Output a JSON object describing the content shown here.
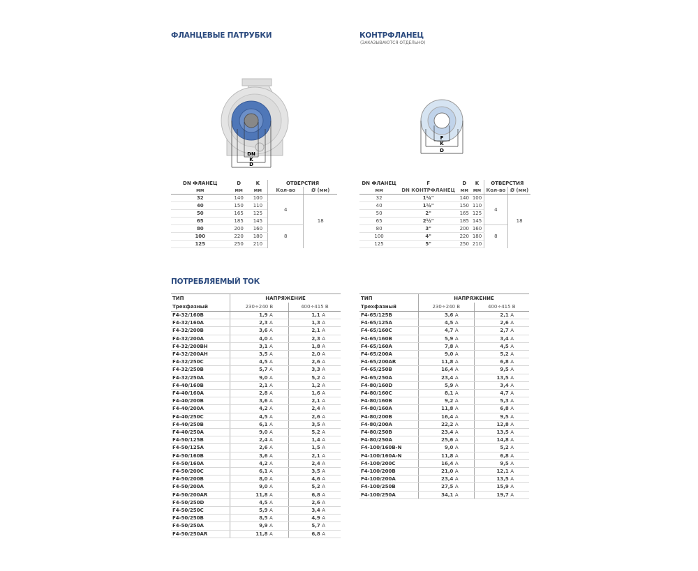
{
  "flanges": {
    "title": "ФЛАНЦЕВЫЕ ПАТРУБКИ",
    "diagram_labels": {
      "dn": "DN",
      "k": "K",
      "d": "D"
    },
    "headers": [
      "DN ФЛАНЕЦ",
      "D",
      "K",
      "ОТВЕРСТИЯ"
    ],
    "subheaders": [
      "мм",
      "мм",
      "мм",
      "Кол-во",
      "Ø (мм)"
    ],
    "rows": [
      {
        "dn": "32",
        "d": "140",
        "k": "100"
      },
      {
        "dn": "40",
        "d": "150",
        "k": "110"
      },
      {
        "dn": "50",
        "d": "165",
        "k": "125"
      },
      {
        "dn": "65",
        "d": "185",
        "k": "145"
      },
      {
        "dn": "80",
        "d": "200",
        "k": "160"
      },
      {
        "dn": "100",
        "d": "220",
        "k": "180"
      },
      {
        "dn": "125",
        "d": "250",
        "k": "210"
      }
    ],
    "holes_count_a": "4",
    "holes_count_b": "8",
    "holes_dia": "18"
  },
  "counterflange": {
    "title": "КОНТРФЛАНЕЦ",
    "subtitle": "(ЗАКАЗЫВАЮТСЯ ОТДЕЛЬНО)",
    "diagram_labels": {
      "f": "F",
      "k": "K",
      "d": "D"
    },
    "headers": [
      "DN ФЛАНЕЦ",
      "F",
      "D",
      "K",
      "ОТВЕРСТИЯ"
    ],
    "subheaders": [
      "мм",
      "DN КОНТРФЛАНЕЦ",
      "мм",
      "мм",
      "Кол-во",
      "Ø (мм)"
    ],
    "rows": [
      {
        "dn": "32",
        "f": "1¼\"",
        "d": "140",
        "k": "100"
      },
      {
        "dn": "40",
        "f": "1½\"",
        "d": "150",
        "k": "110"
      },
      {
        "dn": "50",
        "f": "2\"",
        "d": "165",
        "k": "125"
      },
      {
        "dn": "65",
        "f": "2½\"",
        "d": "185",
        "k": "145"
      },
      {
        "dn": "80",
        "f": "3\"",
        "d": "200",
        "k": "160"
      },
      {
        "dn": "100",
        "f": "4\"",
        "d": "220",
        "k": "180"
      },
      {
        "dn": "125",
        "f": "5\"",
        "d": "250",
        "k": "210"
      }
    ],
    "holes_count_a": "4",
    "holes_count_b": "8",
    "holes_dia": "18"
  },
  "current": {
    "title": "ПОТРЕБЛЯЕМЫЙ ТОК",
    "col_type": "ТИП",
    "col_voltage": "НАПРЯЖЕНИЕ",
    "col_phase": "Трехфазный",
    "v1": "230÷240 В",
    "v2": "400÷415 В",
    "unit": "A",
    "left": [
      [
        "F4-32/160B",
        "1,9",
        "1,1"
      ],
      [
        "F4-32/160A",
        "2,3",
        "1,3"
      ],
      [
        "F4-32/200B",
        "3,6",
        "2,1"
      ],
      [
        "F4-32/200A",
        "4,0",
        "2,3"
      ],
      [
        "F4-32/200BH",
        "3,1",
        "1,8"
      ],
      [
        "F4-32/200AH",
        "3,5",
        "2,0"
      ],
      [
        "F4-32/250C",
        "4,5",
        "2,6"
      ],
      [
        "F4-32/250B",
        "5,7",
        "3,3"
      ],
      [
        "F4-32/250A",
        "9,0",
        "5,2"
      ],
      [
        "F4-40/160B",
        "2,1",
        "1,2"
      ],
      [
        "F4-40/160A",
        "2,8",
        "1,6"
      ],
      [
        "F4-40/200B",
        "3,6",
        "2,1"
      ],
      [
        "F4-40/200A",
        "4,2",
        "2,4"
      ],
      [
        "F4-40/250C",
        "4,5",
        "2,6"
      ],
      [
        "F4-40/250B",
        "6,1",
        "3,5"
      ],
      [
        "F4-40/250A",
        "9,0",
        "5,2"
      ],
      [
        "F4-50/125B",
        "2,4",
        "1,4"
      ],
      [
        "F4-50/125A",
        "2,6",
        "1,5"
      ],
      [
        "F4-50/160B",
        "3,6",
        "2,1"
      ],
      [
        "F4-50/160A",
        "4,2",
        "2,4"
      ],
      [
        "F4-50/200C",
        "6,1",
        "3,5"
      ],
      [
        "F4-50/200B",
        "8,0",
        "4,6"
      ],
      [
        "F4-50/200A",
        "9,0",
        "5,2"
      ],
      [
        "F4-50/200AR",
        "11,8",
        "6,8"
      ],
      [
        "F4-50/250D",
        "4,5",
        "2,6"
      ],
      [
        "F4-50/250C",
        "5,9",
        "3,4"
      ],
      [
        "F4-50/250B",
        "8,5",
        "4,9"
      ],
      [
        "F4-50/250A",
        "9,9",
        "5,7"
      ],
      [
        "F4-50/250AR",
        "11,8",
        "6,8"
      ]
    ],
    "right": [
      [
        "F4-65/125B",
        "3,6",
        "2,1"
      ],
      [
        "F4-65/125A",
        "4,5",
        "2,6"
      ],
      [
        "F4-65/160C",
        "4,7",
        "2,7"
      ],
      [
        "F4-65/160B",
        "5,9",
        "3,4"
      ],
      [
        "F4-65/160A",
        "7,8",
        "4,5"
      ],
      [
        "F4-65/200A",
        "9,0",
        "5,2"
      ],
      [
        "F4-65/200AR",
        "11,8",
        "6,8"
      ],
      [
        "F4-65/250B",
        "16,4",
        "9,5"
      ],
      [
        "F4-65/250A",
        "23,4",
        "13,5"
      ],
      [
        "F4-80/160D",
        "5,9",
        "3,4"
      ],
      [
        "F4-80/160C",
        "8,1",
        "4,7"
      ],
      [
        "F4-80/160B",
        "9,2",
        "5,3"
      ],
      [
        "F4-80/160A",
        "11,8",
        "6,8"
      ],
      [
        "F4-80/200B",
        "16,4",
        "9,5"
      ],
      [
        "F4-80/200A",
        "22,2",
        "12,8"
      ],
      [
        "F4-80/250B",
        "23,4",
        "13,5"
      ],
      [
        "F4-80/250A",
        "25,6",
        "14,8"
      ],
      [
        "F4-100/160B-N",
        "9,0",
        "5,2"
      ],
      [
        "F4-100/160A-N",
        "11,8",
        "6,8"
      ],
      [
        "F4-100/200C",
        "16,4",
        "9,5"
      ],
      [
        "F4-100/200B",
        "21,0",
        "12,1"
      ],
      [
        "F4-100/200A",
        "23,4",
        "13,5"
      ],
      [
        "F4-100/250B",
        "27,5",
        "15,9"
      ],
      [
        "F4-100/250A",
        "34,1",
        "19,7"
      ]
    ]
  },
  "colors": {
    "heading": "#2b4a7e",
    "flange_blue": "#4f77b8",
    "pump_gray": "#d9d9d9"
  }
}
